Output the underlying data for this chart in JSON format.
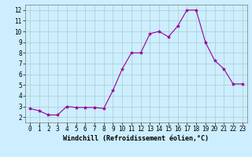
{
  "x": [
    0,
    1,
    2,
    3,
    4,
    5,
    6,
    7,
    8,
    9,
    10,
    11,
    12,
    13,
    14,
    15,
    16,
    17,
    18,
    19,
    20,
    21,
    22,
    23
  ],
  "y": [
    2.8,
    2.6,
    2.2,
    2.2,
    3.0,
    2.9,
    2.9,
    2.9,
    2.8,
    4.5,
    6.5,
    8.0,
    8.0,
    9.8,
    10.0,
    9.5,
    10.5,
    12.0,
    12.0,
    9.0,
    7.3,
    6.5,
    5.1,
    5.1
  ],
  "line_color": "#990099",
  "marker": "*",
  "marker_size": 3,
  "bg_color": "#cceeff",
  "grid_color": "#aacccc",
  "xlabel": "Windchill (Refroidissement éolien,°C)",
  "xlim": [
    -0.5,
    23.5
  ],
  "ylim": [
    1.5,
    12.5
  ],
  "yticks": [
    2,
    3,
    4,
    5,
    6,
    7,
    8,
    9,
    10,
    11,
    12
  ],
  "xticks": [
    0,
    1,
    2,
    3,
    4,
    5,
    6,
    7,
    8,
    9,
    10,
    11,
    12,
    13,
    14,
    15,
    16,
    17,
    18,
    19,
    20,
    21,
    22,
    23
  ],
  "tick_fontsize": 5.5,
  "xlabel_fontsize": 6.0
}
